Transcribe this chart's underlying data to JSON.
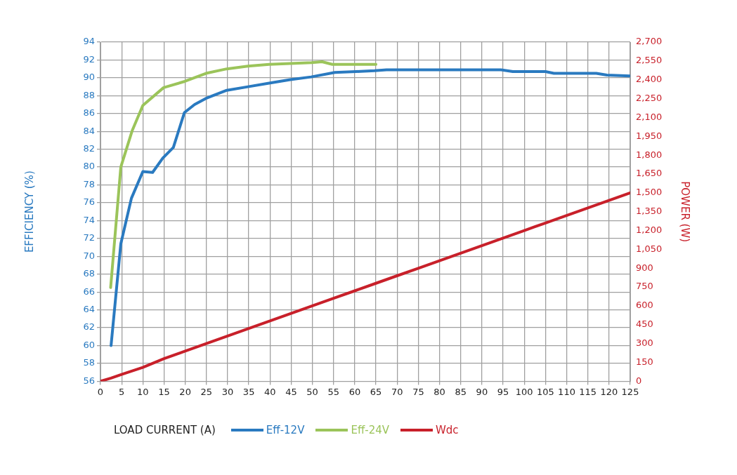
{
  "chart_data": {
    "type": "line",
    "xlabel": "LOAD CURRENT (A)",
    "ylabel": "EFFICIENCY (%)",
    "y2label": "POWER (W)",
    "xlim": [
      0,
      125
    ],
    "xticks": [
      0,
      5,
      10,
      15,
      20,
      25,
      30,
      35,
      40,
      45,
      50,
      55,
      60,
      65,
      70,
      75,
      80,
      85,
      90,
      95,
      100,
      105,
      110,
      115,
      120,
      125
    ],
    "ylim": [
      56,
      94
    ],
    "yticks": [
      56,
      58,
      60,
      62,
      64,
      66,
      68,
      70,
      72,
      74,
      76,
      78,
      80,
      82,
      84,
      86,
      88,
      90,
      92,
      94
    ],
    "y2lim": [
      0,
      2700
    ],
    "y2ticks": [
      {
        "value": 0,
        "label": "0"
      },
      {
        "value": 150,
        "label": "150"
      },
      {
        "value": 300,
        "label": "300"
      },
      {
        "value": 450,
        "label": "450"
      },
      {
        "value": 600,
        "label": "600"
      },
      {
        "value": 750,
        "label": "750"
      },
      {
        "value": 900,
        "label": "900"
      },
      {
        "value": 1050,
        "label": "1,050"
      },
      {
        "value": 1200,
        "label": "1,200"
      },
      {
        "value": 1350,
        "label": "1,350"
      },
      {
        "value": 1500,
        "label": "1,500"
      },
      {
        "value": 1650,
        "label": "1,650"
      },
      {
        "value": 1800,
        "label": "1,800"
      },
      {
        "value": 1950,
        "label": "1,950"
      },
      {
        "value": 2100,
        "label": "2,100"
      },
      {
        "value": 2250,
        "label": "2,250"
      },
      {
        "value": 2400,
        "label": "2,400"
      },
      {
        "value": 2550,
        "label": "2,550"
      },
      {
        "value": 2700,
        "label": "2,700"
      }
    ],
    "grid": true,
    "legend": "bottom",
    "marker": "none",
    "line_style": "solid",
    "series": [
      {
        "name": "Eff-12V",
        "color": "#2a7ac0",
        "x": [
          2.5,
          4.8,
          7.3,
          10,
          12.3,
          14.7,
          17.2,
          19.8,
          22.2,
          24.9,
          29.8,
          34.8,
          39.8,
          44.8,
          49.7,
          55.3,
          60.3,
          64.7,
          67.5,
          94.5,
          97.3,
          105,
          107,
          111.7,
          117,
          119.5,
          125
        ],
        "values": [
          60,
          71.4,
          76.5,
          79.5,
          79.4,
          81,
          82.2,
          86.1,
          87,
          87.7,
          88.6,
          89,
          89.4,
          89.8,
          90.1,
          90.6,
          90.7,
          90.8,
          90.9,
          90.9,
          90.7,
          90.7,
          90.5,
          90.5,
          90.5,
          90.3,
          90.2
        ]
      },
      {
        "name": "Eff-24V",
        "color": "#9bc45a",
        "x": [
          2.4,
          4.8,
          7.5,
          10,
          14.9,
          19.9,
          24.9,
          29.8,
          34.8,
          39.8,
          44.8,
          49.8,
          52.3,
          54.7,
          65
        ],
        "values": [
          66.5,
          80,
          84.1,
          86.9,
          88.9,
          89.6,
          90.5,
          91,
          91.3,
          91.5,
          91.6,
          91.7,
          91.8,
          91.5,
          91.5
        ]
      },
      {
        "name": "Wdc",
        "color": "#c8202a",
        "axis": "y2",
        "x": [
          0,
          2.5,
          5,
          10,
          15,
          20,
          25,
          30,
          35,
          40,
          45,
          50,
          55,
          60,
          65,
          70,
          75,
          80,
          85,
          90,
          95,
          100,
          105,
          110,
          115,
          120,
          125
        ],
        "values": [
          0,
          25,
          55,
          110,
          180,
          240,
          300,
          360,
          420,
          480,
          540,
          600,
          660,
          720,
          780,
          840,
          900,
          960,
          1020,
          1080,
          1140,
          1200,
          1260,
          1320,
          1380,
          1440,
          1500
        ]
      }
    ]
  }
}
